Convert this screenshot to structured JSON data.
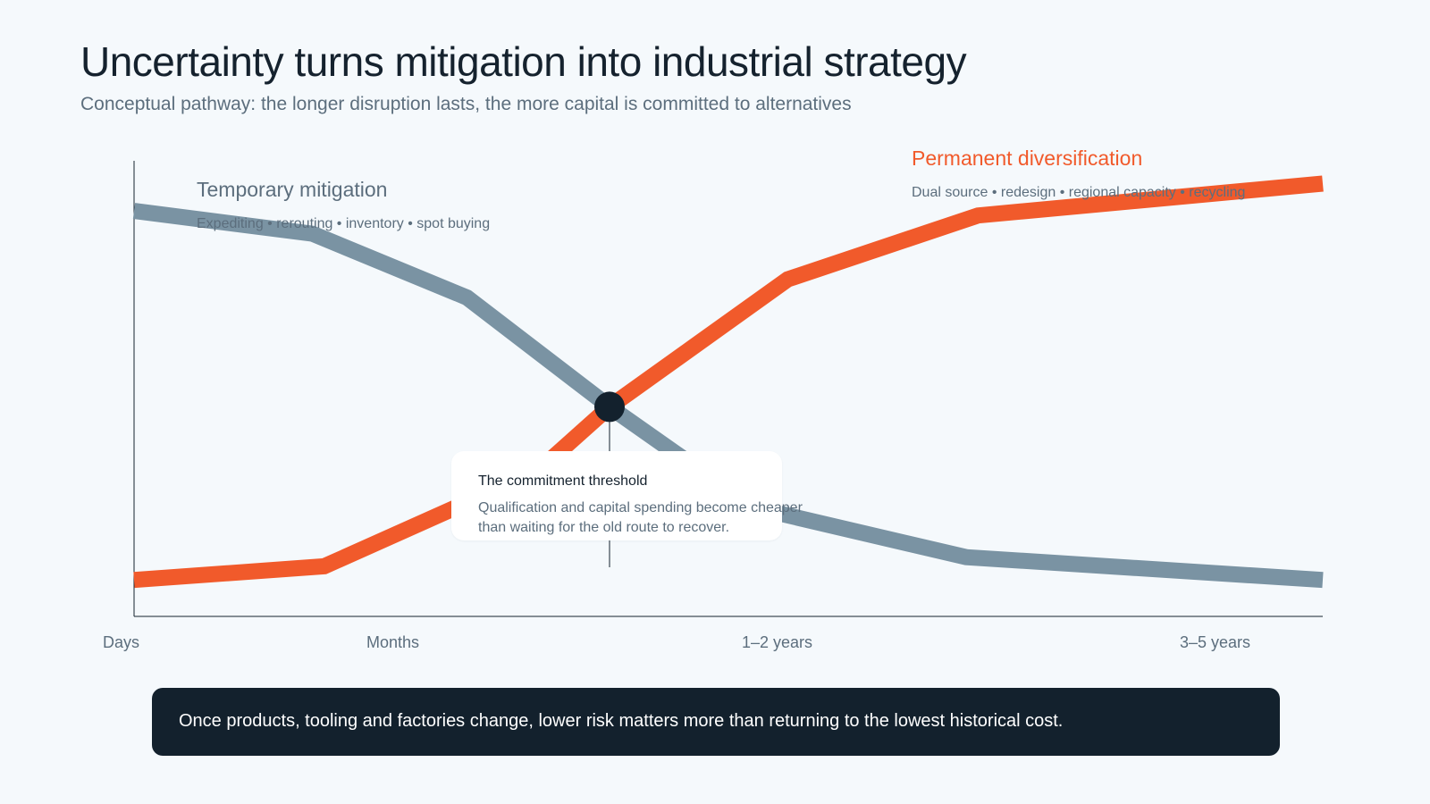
{
  "title": "Uncertainty turns mitigation into industrial strategy",
  "subtitle": "Conceptual pathway: the longer disruption lasts, the more capital is committed to alternatives",
  "chart_data": {
    "type": "line",
    "x_ticks": [
      "Days",
      "Months",
      "1–2 years",
      "3–5 years"
    ],
    "ylim": [
      0,
      100
    ],
    "grid": false,
    "series": [
      {
        "name": "Temporary mitigation",
        "detail": "Expediting • rerouting • inventory • spot buying",
        "color": "#7a93a3",
        "points": [
          [
            0,
            89
          ],
          [
            15,
            84
          ],
          [
            28,
            70
          ],
          [
            40,
            46
          ],
          [
            52,
            24
          ],
          [
            70,
            13
          ],
          [
            100,
            8
          ]
        ]
      },
      {
        "name": "Permanent diversification",
        "detail": "Dual source • redesign • regional capacity • recycling",
        "color": "#f15a2b",
        "points": [
          [
            0,
            8
          ],
          [
            16,
            11
          ],
          [
            34,
            32
          ],
          [
            40,
            46
          ],
          [
            55,
            74
          ],
          [
            71,
            88
          ],
          [
            100,
            95
          ]
        ]
      }
    ],
    "annotation": {
      "x": 40,
      "y": 46,
      "title": "The commitment threshold",
      "body": "Qualification and capital spending become cheaper than waiting for the old route to recover."
    }
  },
  "banner": "Once products, tooling and factories change, lower risk matters more than returning to the lowest historical cost.",
  "colors": {
    "background": "#f5f9fc",
    "mitigation": "#7a93a3",
    "diversification": "#f15a2b",
    "threshold_dot": "#13212d",
    "banner_bg": "#13212d"
  }
}
